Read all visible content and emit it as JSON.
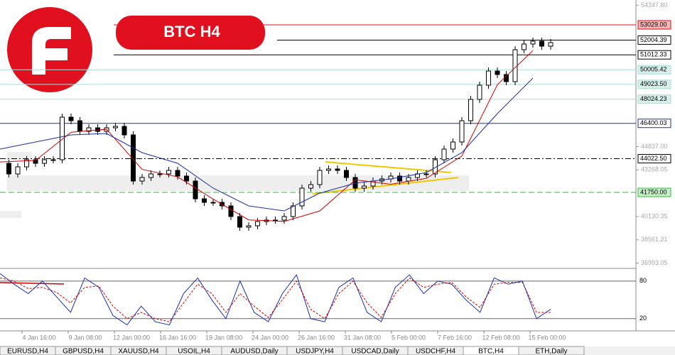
{
  "chart_data": {
    "type": "candlestick",
    "title": "BTC H4",
    "closes": [
      43710,
      42993,
      43471,
      43949,
      43710,
      43949,
      43949,
      46816,
      46577,
      45860,
      46099,
      45860,
      46099,
      46195,
      45622,
      42515,
      42754,
      42993,
      42993,
      43232,
      42850,
      42515,
      41320,
      41081,
      41081,
      40843,
      40126,
      39409,
      39504,
      39791,
      39887,
      39887,
      40126,
      40843,
      42037,
      42276,
      43232,
      43328,
      43232,
      42754,
      42037,
      42181,
      42515,
      42659,
      42850,
      42515,
      42754,
      42993,
      42993,
      43949,
      44666,
      45144,
      46577,
      48011,
      48967,
      49923,
      49684,
      49206,
      51356,
      51739,
      51930,
      51595,
      51834
    ],
    "ma_fast": {
      "color": "#d40000",
      "values": [
        43800,
        43900,
        45800,
        46000,
        43300,
        42800,
        41300,
        39900,
        39800,
        40500,
        42600,
        42300,
        42700,
        44200,
        49000,
        51300
      ]
    },
    "ma_slow": {
      "color": "#1a2fb0",
      "values": [
        44666,
        45144,
        45622,
        45717,
        44427,
        43710,
        42037,
        40843,
        40508,
        41703,
        42372,
        42659,
        43089,
        44427,
        47055,
        49445
      ]
    },
    "ylim": [
      36780,
      54702
    ],
    "yticks": [
      {
        "value": 54347.8,
        "label": "54347.80"
      },
      {
        "value": 44837,
        "label": "44837.00"
      },
      {
        "value": 43268.05,
        "label": "43268.05"
      },
      {
        "value": 40130.35,
        "label": "40130.35"
      },
      {
        "value": 38561.21,
        "label": "38561.21"
      },
      {
        "value": 36993.05,
        "label": "36993.05"
      }
    ],
    "levels": [
      {
        "value": 53029,
        "label": "53029.00",
        "color": "#e0101e",
        "style": "solid",
        "bg": "#f6b5b5"
      },
      {
        "value": 52004.39,
        "label": "52004.39",
        "color": "#000000",
        "style": "solid",
        "bg": "#ffffff"
      },
      {
        "value": 51012.33,
        "label": "51012.33",
        "color": "#000000",
        "style": "solid",
        "bg": "#ffffff"
      },
      {
        "value": 50005.42,
        "label": "50005.42",
        "color": "#a8ddd6",
        "style": "solid",
        "bg": "#d8f0ec"
      },
      {
        "value": 49023.5,
        "label": "49023.50",
        "color": "#a8ddd6",
        "style": "solid",
        "bg": "#d8f0ec"
      },
      {
        "value": 48024.23,
        "label": "48024.23",
        "color": "#a8ddd6",
        "style": "solid",
        "bg": "#d8f0ec"
      },
      {
        "value": 46400.03,
        "label": "46400.03",
        "color": "#1a2fb0",
        "style": "solid",
        "bg": "#ffffff"
      },
      {
        "value": 44022.5,
        "label": "44022.50",
        "color": "#000000",
        "style": "dashdot",
        "bg": "#ffffff"
      },
      {
        "value": 41750,
        "label": "41750.00",
        "color": "#3cb43c",
        "style": "dashed",
        "bg": "#c8f0c8"
      }
    ],
    "x_labels": [
      "4 Jan 16:00",
      "9 Jan 08:00",
      "12 Jan 00:00",
      "16 Jan 16:00",
      "19 Jan 08:00",
      "24 Jan 00:00",
      "26 Jan 16:00",
      "31 Jan 08:00",
      "5 Feb 00:00",
      "7 Feb 16:00",
      "12 Feb 08:00",
      "15 Feb 00:00"
    ],
    "oscillator": {
      "ylim": [
        5,
        98
      ],
      "levels": [
        {
          "value": 80,
          "label": "80"
        },
        {
          "value": 20,
          "label": "20"
        }
      ],
      "k": {
        "color": "#1a2fb0",
        "values": [
          92,
          75,
          60,
          80,
          55,
          30,
          85,
          70,
          25,
          10,
          40,
          15,
          10,
          60,
          85,
          50,
          20,
          80,
          30,
          15,
          60,
          90,
          20,
          15,
          70,
          85,
          30,
          15,
          70,
          90,
          60,
          80,
          75,
          50,
          30,
          85,
          75,
          80,
          20,
          35
        ]
      },
      "d": {
        "color": "#d40000",
        "values": [
          85,
          80,
          68,
          70,
          62,
          45,
          70,
          72,
          40,
          20,
          30,
          20,
          15,
          45,
          75,
          60,
          30,
          60,
          40,
          22,
          50,
          80,
          35,
          20,
          60,
          80,
          45,
          22,
          60,
          85,
          70,
          75,
          78,
          55,
          38,
          75,
          78,
          78,
          30,
          30
        ]
      }
    }
  },
  "tabs": [
    "EURUSD,H4",
    "GBPUSD,H4",
    "XAUUSD,H4",
    "USOIL,H4",
    "AUDUSD,Daily",
    "USDJPY,H4",
    "USDCAD,Daily",
    "USDCHF,H4",
    "BTC,H4",
    "ETH,Daily"
  ],
  "active_tab": 8
}
